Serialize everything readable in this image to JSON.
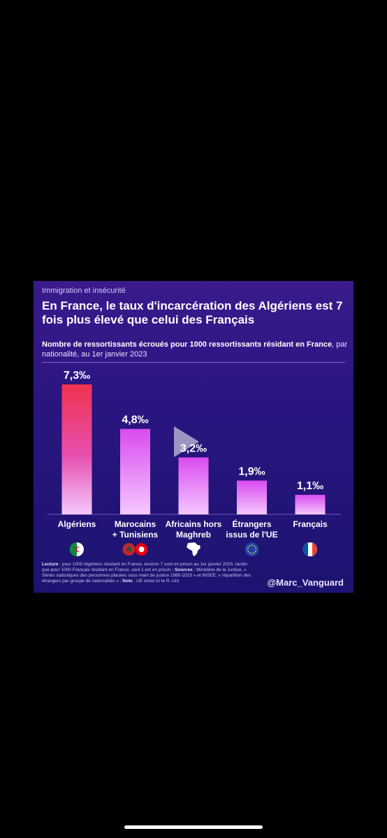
{
  "kicker": "Immigration et insécurité",
  "title": "En France, le taux d'incarcération des Algériens est 7 fois plus élevé que celui des Français",
  "subtitle_bold": "Nombre de ressortissants écroués pour 1000 ressortissants résidant en France",
  "subtitle_rest": ", par nationalité, au 1er janvier 2023",
  "chart_data": {
    "type": "bar",
    "categories": [
      "Algériens",
      "Marocains + Tunisiens",
      "Africains hors Maghreb",
      "Étrangers issus de l'UE",
      "Français"
    ],
    "category_lines": [
      [
        "Algériens"
      ],
      [
        "Marocains",
        "+ Tunisiens"
      ],
      [
        "Africains hors",
        "Maghreb"
      ],
      [
        "Étrangers",
        "issus de l'UE"
      ],
      [
        "Français"
      ]
    ],
    "values": [
      7.3,
      4.8,
      3.2,
      1.9,
      1.1
    ],
    "value_labels": [
      "7,3‰",
      "4,8‰",
      "3,2‰",
      "1,9‰",
      "1,1‰"
    ],
    "unit": "‰",
    "ylim": [
      0,
      7.3
    ],
    "grid": false,
    "flag_icons": [
      "algeria-flag-icon",
      "morocco-tunisia-flags-icon",
      "africa-map-icon",
      "eu-flag-icon",
      "france-flag-icon"
    ],
    "colors": {
      "top_first": "#f0324f",
      "top_others": "#d94bf0",
      "bottom": "#f5c8ff"
    }
  },
  "footnote": {
    "lecture_label": "Lecture",
    "lecture_text": " : pour 1000 Algériens résidant en France, environ 7 sont en prison au 1er janvier 2023, tandis que pour 1000 Français résidant en France, seul 1 est en prison ; ",
    "sources_label": "Sources",
    "sources_text": " : Ministère de la Justice, « Séries statistiques des personnes placées sous main de justice 1980-2023 » et INSEE, « répartition des étrangers par groupe de nationalités » ; ",
    "note_label": "Note",
    "note_text": " : UE inclut ici le R.-Uni"
  },
  "handle": "@Marc_Vanguard"
}
